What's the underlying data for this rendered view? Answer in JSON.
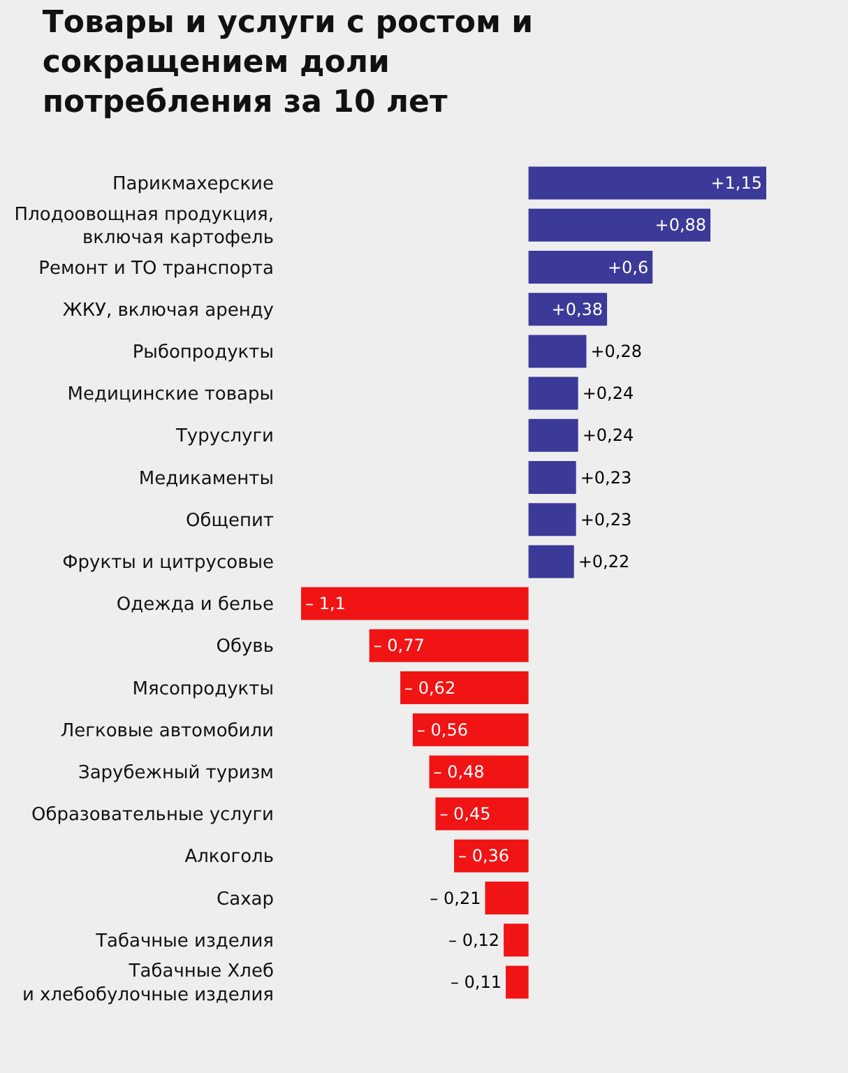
{
  "chart_data": {
    "type": "bar",
    "orientation": "horizontal",
    "title": "Товары и услуги с ростом и\nсокращением доли\nпотребления за 10 лет",
    "categories": [
      "Парикмахерские",
      "Плодоовощная продукция,\nвключая картофель",
      "Ремонт и ТО транспорта",
      "ЖКУ, включая аренду",
      "Рыбопродукты",
      "Медицинские товары",
      "Туруслуги",
      "Медикаменты",
      "Общепит",
      "Фрукты и цитрусовые",
      "Одежда и белье",
      "Обувь",
      "Мясопродукты",
      "Легковые автомобили",
      "Зарубежный туризм",
      "Образовательные услуги",
      "Алкоголь",
      "Сахар",
      "Табачные изделия",
      "Табачные Хлеб\nи хлебобулочные изделия"
    ],
    "values": [
      1.15,
      0.88,
      0.6,
      0.38,
      0.28,
      0.24,
      0.24,
      0.23,
      0.23,
      0.22,
      -1.1,
      -0.77,
      -0.62,
      -0.56,
      -0.48,
      -0.45,
      -0.36,
      -0.21,
      -0.12,
      -0.11
    ],
    "colors": [
      "#3b3a98",
      "#3b3a98",
      "#3b3a98",
      "#3b3a98",
      "#3b3a98",
      "#3b3a98",
      "#3b3a98",
      "#3b3a98",
      "#3b3a98",
      "#3b3a98",
      "#f01414",
      "#f01414",
      "#f01414",
      "#f01414",
      "#f01414",
      "#f01414",
      "#f01414",
      "#f01414",
      "#f01414",
      "#f01414"
    ],
    "value_labels": [
      "+1,15",
      "+0,88",
      "+0,6",
      "+0,38",
      "+0,28",
      "+0,24",
      "+0,24",
      "+0,23",
      "+0,23",
      "+0,22",
      "– 1,1",
      "– 0,77",
      "– 0,62",
      "– 0,56",
      "– 0,48",
      "– 0,45",
      "– 0,36",
      "– 0,21",
      "– 0,12",
      "– 0,11"
    ],
    "tick_labels": false,
    "grid": false
  }
}
